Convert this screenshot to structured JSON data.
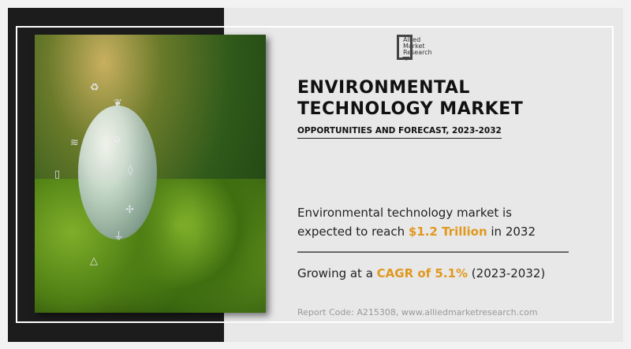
{
  "logo": {
    "text": [
      "Allied",
      "Market",
      "Research"
    ]
  },
  "title": {
    "line1": "ENVIRONMENTAL",
    "line2": "TECHNOLOGY MARKET"
  },
  "subtitle": "OPPORTUNITIES AND FORECAST, 2023-2032",
  "stat1": {
    "prefix": "Environmental technology market is expected to reach ",
    "highlight": "$1.2 Trillion",
    "suffix": " in 2032"
  },
  "stat2": {
    "prefix": "Growing at a ",
    "highlight": "CAGR of 5.1%",
    "suffix": " (2023-2032)"
  },
  "footer": "Report Code: A215308, www.alliedmarketresearch.com",
  "colors": {
    "accent": "#e0981e",
    "dark_panel": "#1c1c1c",
    "background": "#e8e8e8"
  }
}
